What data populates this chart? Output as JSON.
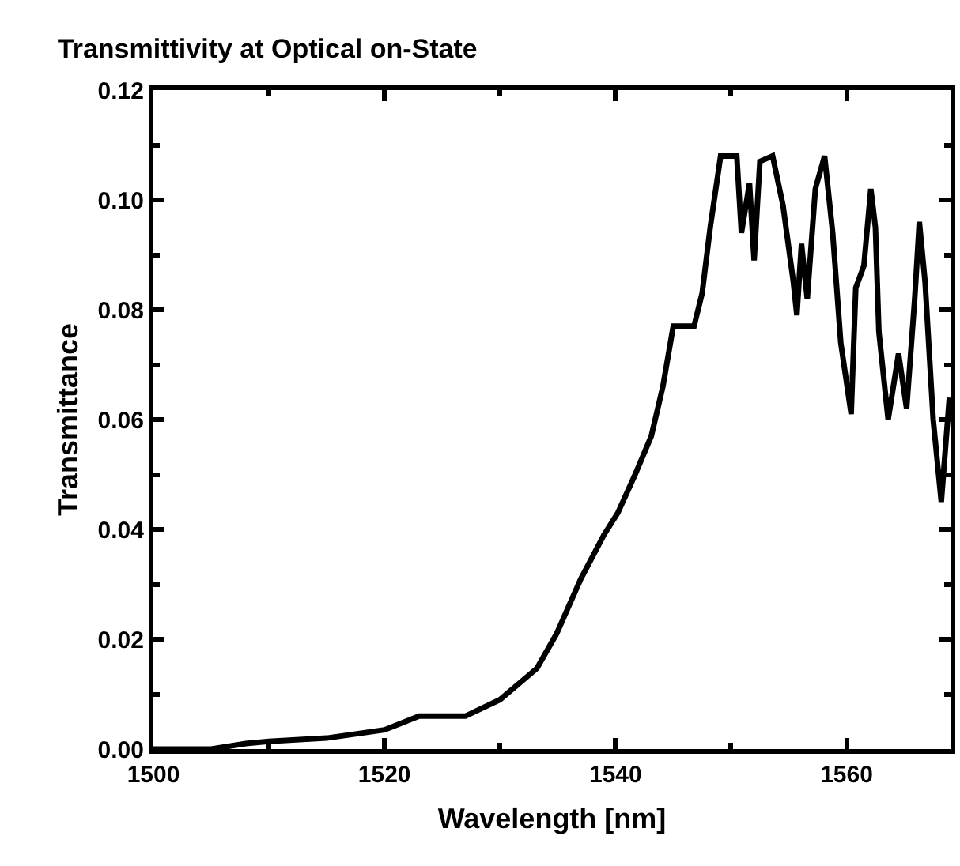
{
  "chart_data": {
    "type": "line",
    "title": "Transmittivity at Optical on-State",
    "xlabel": "Wavelength [nm]",
    "ylabel": "Transmittance",
    "xlim": [
      1500,
      1569
    ],
    "ylim": [
      0,
      0.12
    ],
    "xticks": [
      1500,
      {
        "value": 1510,
        "label": null
      },
      1520,
      {
        "value": 1530,
        "label": null
      },
      1540,
      {
        "value": 1550,
        "label": null
      },
      1560
    ],
    "yticks": [
      {
        "value": 0,
        "label": "0.00"
      },
      {
        "value": 0.01,
        "label": null
      },
      0.02,
      {
        "value": 0.03,
        "label": null
      },
      0.04,
      {
        "value": 0.05,
        "label": null
      },
      0.06,
      {
        "value": 0.07,
        "label": null
      },
      0.08,
      {
        "value": 0.09,
        "label": null
      },
      {
        "value": 0.1,
        "label": "0.10"
      },
      {
        "value": 0.11,
        "label": null
      },
      0.12
    ],
    "marker": "none",
    "line_style": "solid",
    "series": [
      {
        "color": "#000000",
        "x": [
          1500,
          1505,
          1508,
          1510,
          1515,
          1520,
          1523,
          1527,
          1530,
          1533.2,
          1534.9,
          1537.0,
          1539.0,
          1540.2,
          1541.7,
          1543.1,
          1544.1,
          1545.0,
          1546.8,
          1547.5,
          1548.2,
          1549.1,
          1550.5,
          1550.9,
          1551.6,
          1552.0,
          1552.5,
          1553.6,
          1554.5,
          1555.4,
          1555.7,
          1556.1,
          1556.6,
          1557.3,
          1558.1,
          1558.8,
          1559.5,
          1560.4,
          1560.8,
          1561.5,
          1562.1,
          1562.5,
          1562.8,
          1563.6,
          1564.5,
          1565.2,
          1565.9,
          1566.3,
          1566.8,
          1567.5,
          1568.2,
          1568.9
        ],
        "values": [
          0.0,
          0.0,
          0.001,
          0.0014,
          0.002,
          0.0035,
          0.006,
          0.006,
          0.009,
          0.0147,
          0.021,
          0.031,
          0.039,
          0.043,
          0.05,
          0.057,
          0.066,
          0.077,
          0.077,
          0.083,
          0.095,
          0.108,
          0.108,
          0.094,
          0.103,
          0.089,
          0.107,
          0.108,
          0.099,
          0.085,
          0.079,
          0.092,
          0.082,
          0.102,
          0.108,
          0.094,
          0.074,
          0.061,
          0.084,
          0.088,
          0.102,
          0.095,
          0.076,
          0.06,
          0.072,
          0.062,
          0.082,
          0.096,
          0.085,
          0.06,
          0.045,
          0.064
        ]
      }
    ]
  }
}
